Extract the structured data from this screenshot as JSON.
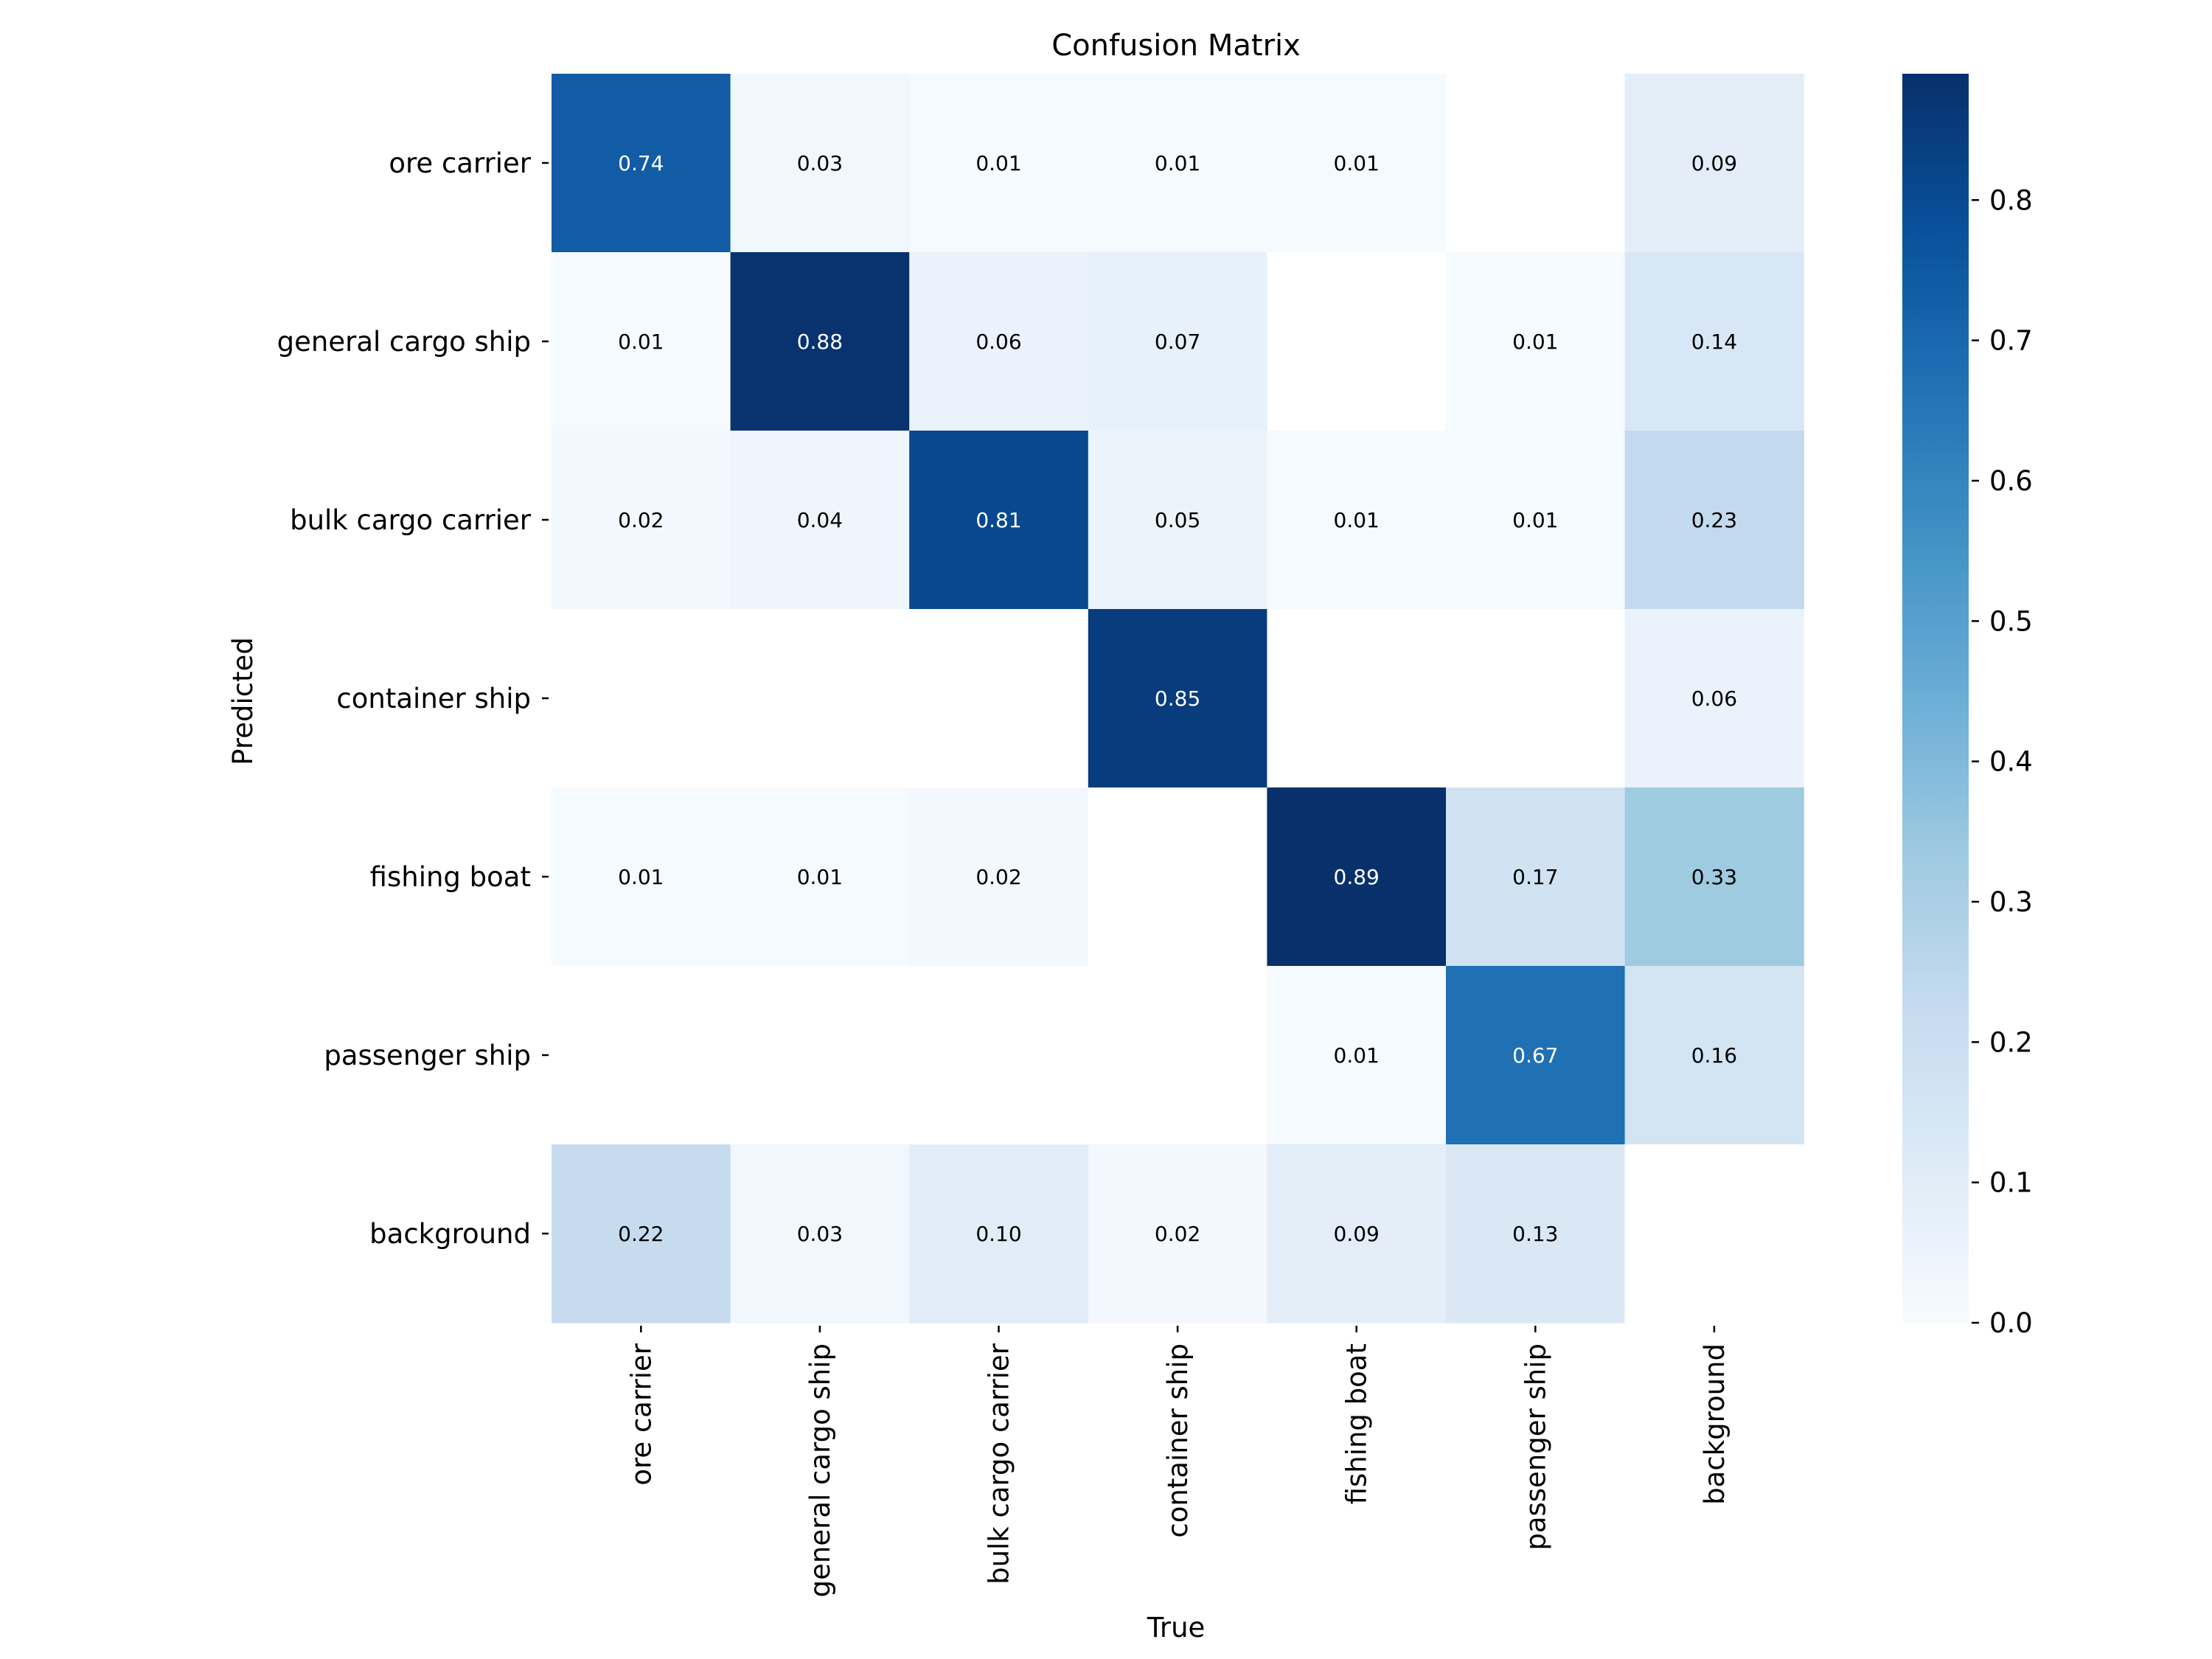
{
  "chart_data": {
    "type": "heatmap",
    "title": "Confusion Matrix",
    "xlabel": "True",
    "ylabel": "Predicted",
    "x_categories": [
      "ore carrier",
      "general cargo ship",
      "bulk cargo carrier",
      "container ship",
      "fishing boat",
      "passenger ship",
      "background"
    ],
    "y_categories": [
      "ore carrier",
      "general cargo ship",
      "bulk cargo carrier",
      "container ship",
      "fishing boat",
      "passenger ship",
      "background"
    ],
    "values": [
      [
        0.74,
        0.03,
        0.01,
        0.01,
        0.01,
        null,
        0.09
      ],
      [
        0.01,
        0.88,
        0.06,
        0.07,
        null,
        0.01,
        0.14
      ],
      [
        0.02,
        0.04,
        0.81,
        0.05,
        0.01,
        0.01,
        0.23
      ],
      [
        null,
        null,
        null,
        0.85,
        null,
        null,
        0.06
      ],
      [
        0.01,
        0.01,
        0.02,
        null,
        0.89,
        0.17,
        0.33
      ],
      [
        null,
        null,
        null,
        null,
        0.01,
        0.67,
        0.16
      ],
      [
        0.22,
        0.03,
        0.1,
        0.02,
        0.09,
        0.13,
        null
      ]
    ],
    "value_format": "2 decimals, blank when empty",
    "colormap": "Blues",
    "colorbar": {
      "range": [
        0.0,
        0.89
      ],
      "ticks": [
        0.0,
        0.1,
        0.2,
        0.3,
        0.4,
        0.5,
        0.6,
        0.7,
        0.8
      ],
      "tick_labels": [
        "0.0",
        "0.1",
        "0.2",
        "0.3",
        "0.4",
        "0.5",
        "0.6",
        "0.7",
        "0.8"
      ]
    },
    "colors": {
      "blues_stops": [
        "#f7fbff",
        "#deebf7",
        "#c6dbef",
        "#9ecae1",
        "#6baed6",
        "#4292c6",
        "#2171b5",
        "#08519c",
        "#08306b"
      ],
      "text_dark": "#000000",
      "text_light": "#ffffff"
    }
  }
}
